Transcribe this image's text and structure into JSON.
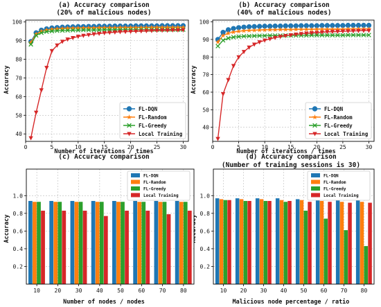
{
  "chart_data": [
    {
      "type": "line",
      "title_line1": "(a) Accuracy comparison",
      "title_line2": "(20% of malicious nodes)",
      "xlabel": "Number of iterations / times",
      "ylabel": "Accuracy",
      "xlim": [
        0,
        31
      ],
      "ylim": [
        36,
        101
      ],
      "xticks": [
        0,
        5,
        10,
        15,
        20,
        25,
        30
      ],
      "yticks": [
        40,
        50,
        60,
        70,
        80,
        90,
        100
      ],
      "grid": true,
      "legend_position": "bottom-right",
      "x": [
        1,
        2,
        3,
        4,
        5,
        6,
        7,
        8,
        9,
        10,
        11,
        12,
        13,
        14,
        15,
        16,
        17,
        18,
        19,
        20,
        21,
        22,
        23,
        24,
        25,
        26,
        27,
        28,
        29,
        30
      ],
      "series": [
        {
          "name": "FL-DQN",
          "color": "#1f77b4",
          "marker": "circle",
          "values": [
            89.5,
            94.2,
            95.6,
            96.3,
            96.8,
            97.0,
            97.2,
            97.3,
            97.4,
            97.5,
            97.5,
            97.6,
            97.6,
            97.7,
            97.7,
            97.7,
            97.8,
            97.8,
            97.8,
            97.8,
            97.9,
            97.9,
            97.9,
            97.9,
            97.9,
            98.0,
            98.0,
            98.0,
            98.0,
            98.0
          ]
        },
        {
          "name": "FL-Random",
          "color": "#ff7f0e",
          "marker": "star",
          "values": [
            89.0,
            93.5,
            95.0,
            95.7,
            96.1,
            96.3,
            96.5,
            96.6,
            96.7,
            96.7,
            96.8,
            96.8,
            96.8,
            96.9,
            96.9,
            96.9,
            96.9,
            97.0,
            97.0,
            97.0,
            97.0,
            97.0,
            97.0,
            97.1,
            97.1,
            97.1,
            97.1,
            97.1,
            97.1,
            97.1
          ]
        },
        {
          "name": "FL-Greedy",
          "color": "#2ca02c",
          "marker": "x",
          "values": [
            88.0,
            92.8,
            94.2,
            94.8,
            95.1,
            95.3,
            95.4,
            95.5,
            95.6,
            95.6,
            95.7,
            95.7,
            95.7,
            95.7,
            95.8,
            95.8,
            95.8,
            95.8,
            95.8,
            95.8,
            95.8,
            95.9,
            95.9,
            95.9,
            95.9,
            95.9,
            95.9,
            95.9,
            95.9,
            95.9
          ]
        },
        {
          "name": "Local Training",
          "color": "#d62728",
          "marker": "triangle-down",
          "values": [
            37.8,
            51.5,
            63.5,
            75.5,
            84.5,
            87.5,
            89.5,
            90.7,
            91.5,
            92.2,
            92.7,
            93.1,
            93.5,
            93.8,
            94.1,
            94.3,
            94.5,
            94.7,
            94.8,
            94.9,
            95.0,
            95.1,
            95.2,
            95.3,
            95.4,
            95.5,
            95.5,
            95.6,
            95.6,
            95.7
          ]
        }
      ]
    },
    {
      "type": "line",
      "title_line1": "(b) Accuracy comparison",
      "title_line2": "(40% of malicious nodes)",
      "xlabel": "Number of iterations / times",
      "ylabel": "Accuracy",
      "xlim": [
        0,
        31
      ],
      "ylim": [
        32,
        101
      ],
      "xticks": [
        0,
        5,
        10,
        15,
        20,
        25,
        30
      ],
      "yticks": [
        40,
        50,
        60,
        70,
        80,
        90,
        100
      ],
      "grid": true,
      "legend_position": "bottom-right",
      "x": [
        1,
        2,
        3,
        4,
        5,
        6,
        7,
        8,
        9,
        10,
        11,
        12,
        13,
        14,
        15,
        16,
        17,
        18,
        19,
        20,
        21,
        22,
        23,
        24,
        25,
        26,
        27,
        28,
        29,
        30
      ],
      "series": [
        {
          "name": "FL-DQN",
          "color": "#1f77b4",
          "marker": "circle",
          "values": [
            90.0,
            94.0,
            95.5,
            96.2,
            96.7,
            97.0,
            97.2,
            97.3,
            97.4,
            97.5,
            97.5,
            97.6,
            97.6,
            97.7,
            97.7,
            97.7,
            97.8,
            97.8,
            97.8,
            97.8,
            97.9,
            97.9,
            97.9,
            97.9,
            97.9,
            98.0,
            98.0,
            98.0,
            98.0,
            98.0
          ]
        },
        {
          "name": "FL-Random",
          "color": "#ff7f0e",
          "marker": "star",
          "values": [
            88.5,
            92.2,
            93.5,
            94.2,
            94.6,
            94.9,
            95.1,
            95.2,
            95.3,
            95.4,
            95.5,
            95.5,
            95.6,
            95.6,
            95.6,
            95.7,
            95.7,
            95.7,
            95.7,
            95.8,
            95.8,
            95.8,
            95.8,
            95.8,
            95.8,
            95.9,
            95.9,
            95.9,
            95.9,
            95.9
          ]
        },
        {
          "name": "FL-Greedy",
          "color": "#2ca02c",
          "marker": "x",
          "values": [
            86.2,
            89.5,
            90.7,
            91.3,
            91.6,
            91.8,
            91.9,
            92.0,
            92.1,
            92.1,
            92.2,
            92.2,
            92.2,
            92.3,
            92.3,
            92.3,
            92.3,
            92.3,
            92.4,
            92.4,
            92.4,
            92.4,
            92.4,
            92.4,
            92.4,
            92.5,
            92.5,
            92.5,
            92.5,
            92.5
          ]
        },
        {
          "name": "Local Training",
          "color": "#d62728",
          "marker": "triangle-down",
          "values": [
            33.5,
            59.0,
            67.0,
            75.0,
            80.0,
            83.0,
            85.5,
            87.2,
            88.5,
            89.5,
            90.3,
            91.0,
            91.6,
            92.1,
            92.5,
            92.9,
            93.2,
            93.5,
            93.7,
            93.9,
            94.1,
            94.3,
            94.4,
            94.5,
            94.6,
            94.7,
            94.8,
            94.9,
            95.0,
            95.0
          ]
        }
      ]
    },
    {
      "type": "bar",
      "title_line1": "(c) Accuracy comparison",
      "title_line2": "",
      "xlabel": "Number of nodes / nodes",
      "ylabel": "Accuracy",
      "ylim": [
        0,
        1.3
      ],
      "yticks": [
        0.2,
        0.4,
        0.6,
        0.8,
        1.0
      ],
      "grid": true,
      "legend_position": "top-right",
      "categories": [
        "10",
        "20",
        "30",
        "40",
        "50",
        "60",
        "70",
        "80"
      ],
      "series": [
        {
          "name": "FL-DQN",
          "color": "#1f77b4",
          "values": [
            0.94,
            0.94,
            0.94,
            0.94,
            0.94,
            0.94,
            0.94,
            0.94
          ]
        },
        {
          "name": "FL-Random",
          "color": "#ff7f0e",
          "values": [
            0.93,
            0.93,
            0.93,
            0.93,
            0.93,
            0.93,
            0.93,
            0.93
          ]
        },
        {
          "name": "FL-Greedy",
          "color": "#2ca02c",
          "values": [
            0.93,
            0.93,
            0.93,
            0.93,
            0.93,
            0.93,
            0.93,
            0.93
          ]
        },
        {
          "name": "Local Training",
          "color": "#d62728",
          "values": [
            0.83,
            0.83,
            0.83,
            0.77,
            0.83,
            0.83,
            0.79,
            0.83
          ]
        }
      ]
    },
    {
      "type": "bar",
      "title_line1": "(d) Accuracy comparison",
      "title_line2": "(Number of training sessions is 30)",
      "xlabel": "Malicious node percentage / ratio",
      "ylabel": "Accuracy",
      "ylim": [
        0,
        1.3
      ],
      "yticks": [
        0.2,
        0.4,
        0.6,
        0.8,
        1.0
      ],
      "grid": true,
      "legend_position": "top-right",
      "categories": [
        "10",
        "20",
        "30",
        "40",
        "50",
        "60",
        "70",
        "80"
      ],
      "series": [
        {
          "name": "FL-DQN",
          "color": "#1f77b4",
          "values": [
            0.97,
            0.97,
            0.97,
            0.97,
            0.96,
            0.96,
            0.96,
            0.96
          ]
        },
        {
          "name": "FL-Random",
          "color": "#ff7f0e",
          "values": [
            0.96,
            0.96,
            0.96,
            0.95,
            0.95,
            0.94,
            0.93,
            0.93
          ]
        },
        {
          "name": "FL-Greedy",
          "color": "#2ca02c",
          "values": [
            0.95,
            0.94,
            0.94,
            0.93,
            0.83,
            0.74,
            0.61,
            0.43
          ]
        },
        {
          "name": "Local Training",
          "color": "#d62728",
          "values": [
            0.95,
            0.94,
            0.94,
            0.94,
            0.93,
            0.93,
            0.92,
            0.92
          ]
        }
      ]
    }
  ]
}
